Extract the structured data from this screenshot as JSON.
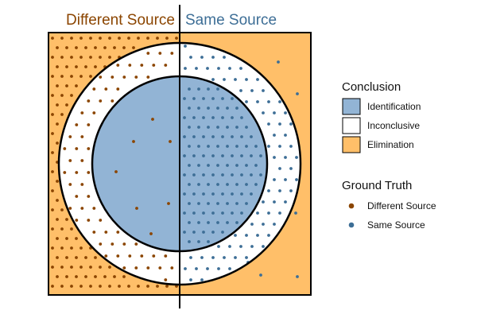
{
  "headers": {
    "left": "Different Source",
    "right": "Same Source"
  },
  "legend": {
    "conclusion": {
      "title": "Conclusion",
      "items": [
        {
          "label": "Identification",
          "color": "#92b4d5"
        },
        {
          "label": "Inconclusive",
          "color": "#ffffff"
        },
        {
          "label": "Elimination",
          "color": "#ffbf69"
        }
      ]
    },
    "ground_truth": {
      "title": "Ground Truth",
      "items": [
        {
          "label": "Different Source",
          "color": "#8b4500"
        },
        {
          "label": "Same Source",
          "color": "#3d6e96"
        }
      ]
    }
  },
  "colors": {
    "identification": "#92b4d5",
    "inconclusive": "#ffffff",
    "elimination": "#ffbf69",
    "different_source": "#8b4500",
    "same_source": "#3d6e96",
    "outline": "#000000"
  }
}
